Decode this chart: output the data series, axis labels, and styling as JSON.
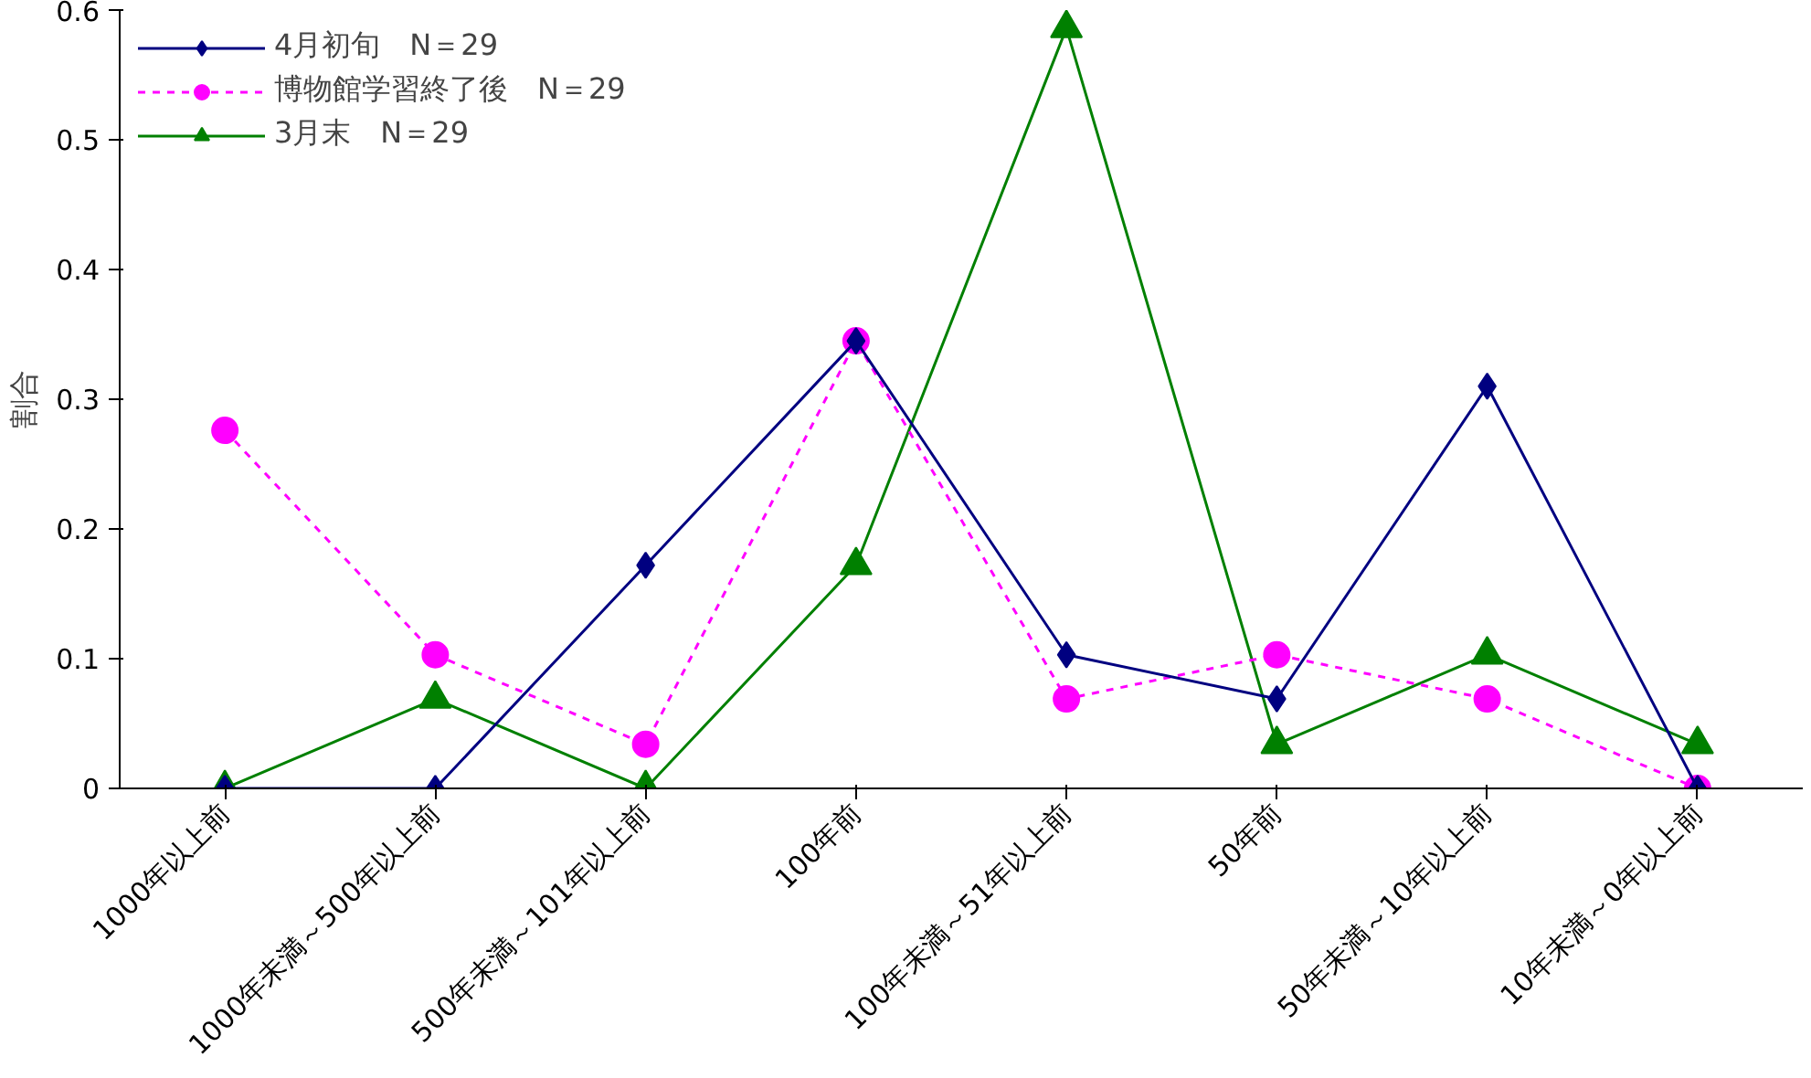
{
  "chart_data": {
    "type": "line",
    "ylabel": "割合",
    "categories": [
      "1000年以上前",
      "1000年未満～500年以上前",
      "500年未満～101年以上前",
      "100年前",
      "100年未満～51年以上前",
      "50年前",
      "50年未満～10年以上前",
      "10年未満～0年以上前"
    ],
    "series": [
      {
        "name": "4月初旬　N＝29",
        "color": "#000080",
        "marker": "diamond",
        "line_style": "solid",
        "values": [
          0,
          0,
          0.172,
          0.345,
          0.103,
          0.069,
          0.31,
          0
        ]
      },
      {
        "name": "博物館学習終了後　N＝29",
        "color": "#ff00ff",
        "marker": "circle",
        "line_style": "dotted",
        "values": [
          0.276,
          0.103,
          0.034,
          0.345,
          0.069,
          0.103,
          0.069,
          0
        ]
      },
      {
        "name": "3月末　N＝29",
        "color": "#008000",
        "marker": "triangle",
        "line_style": "solid",
        "values": [
          0,
          0.069,
          0,
          0.172,
          0.586,
          0.034,
          0.103,
          0.034
        ]
      }
    ],
    "ylim": [
      0,
      0.6
    ],
    "yticks": [
      0,
      0.1,
      0.2,
      0.3,
      0.4,
      0.5,
      0.6
    ],
    "grid": false,
    "legend": "top left"
  }
}
